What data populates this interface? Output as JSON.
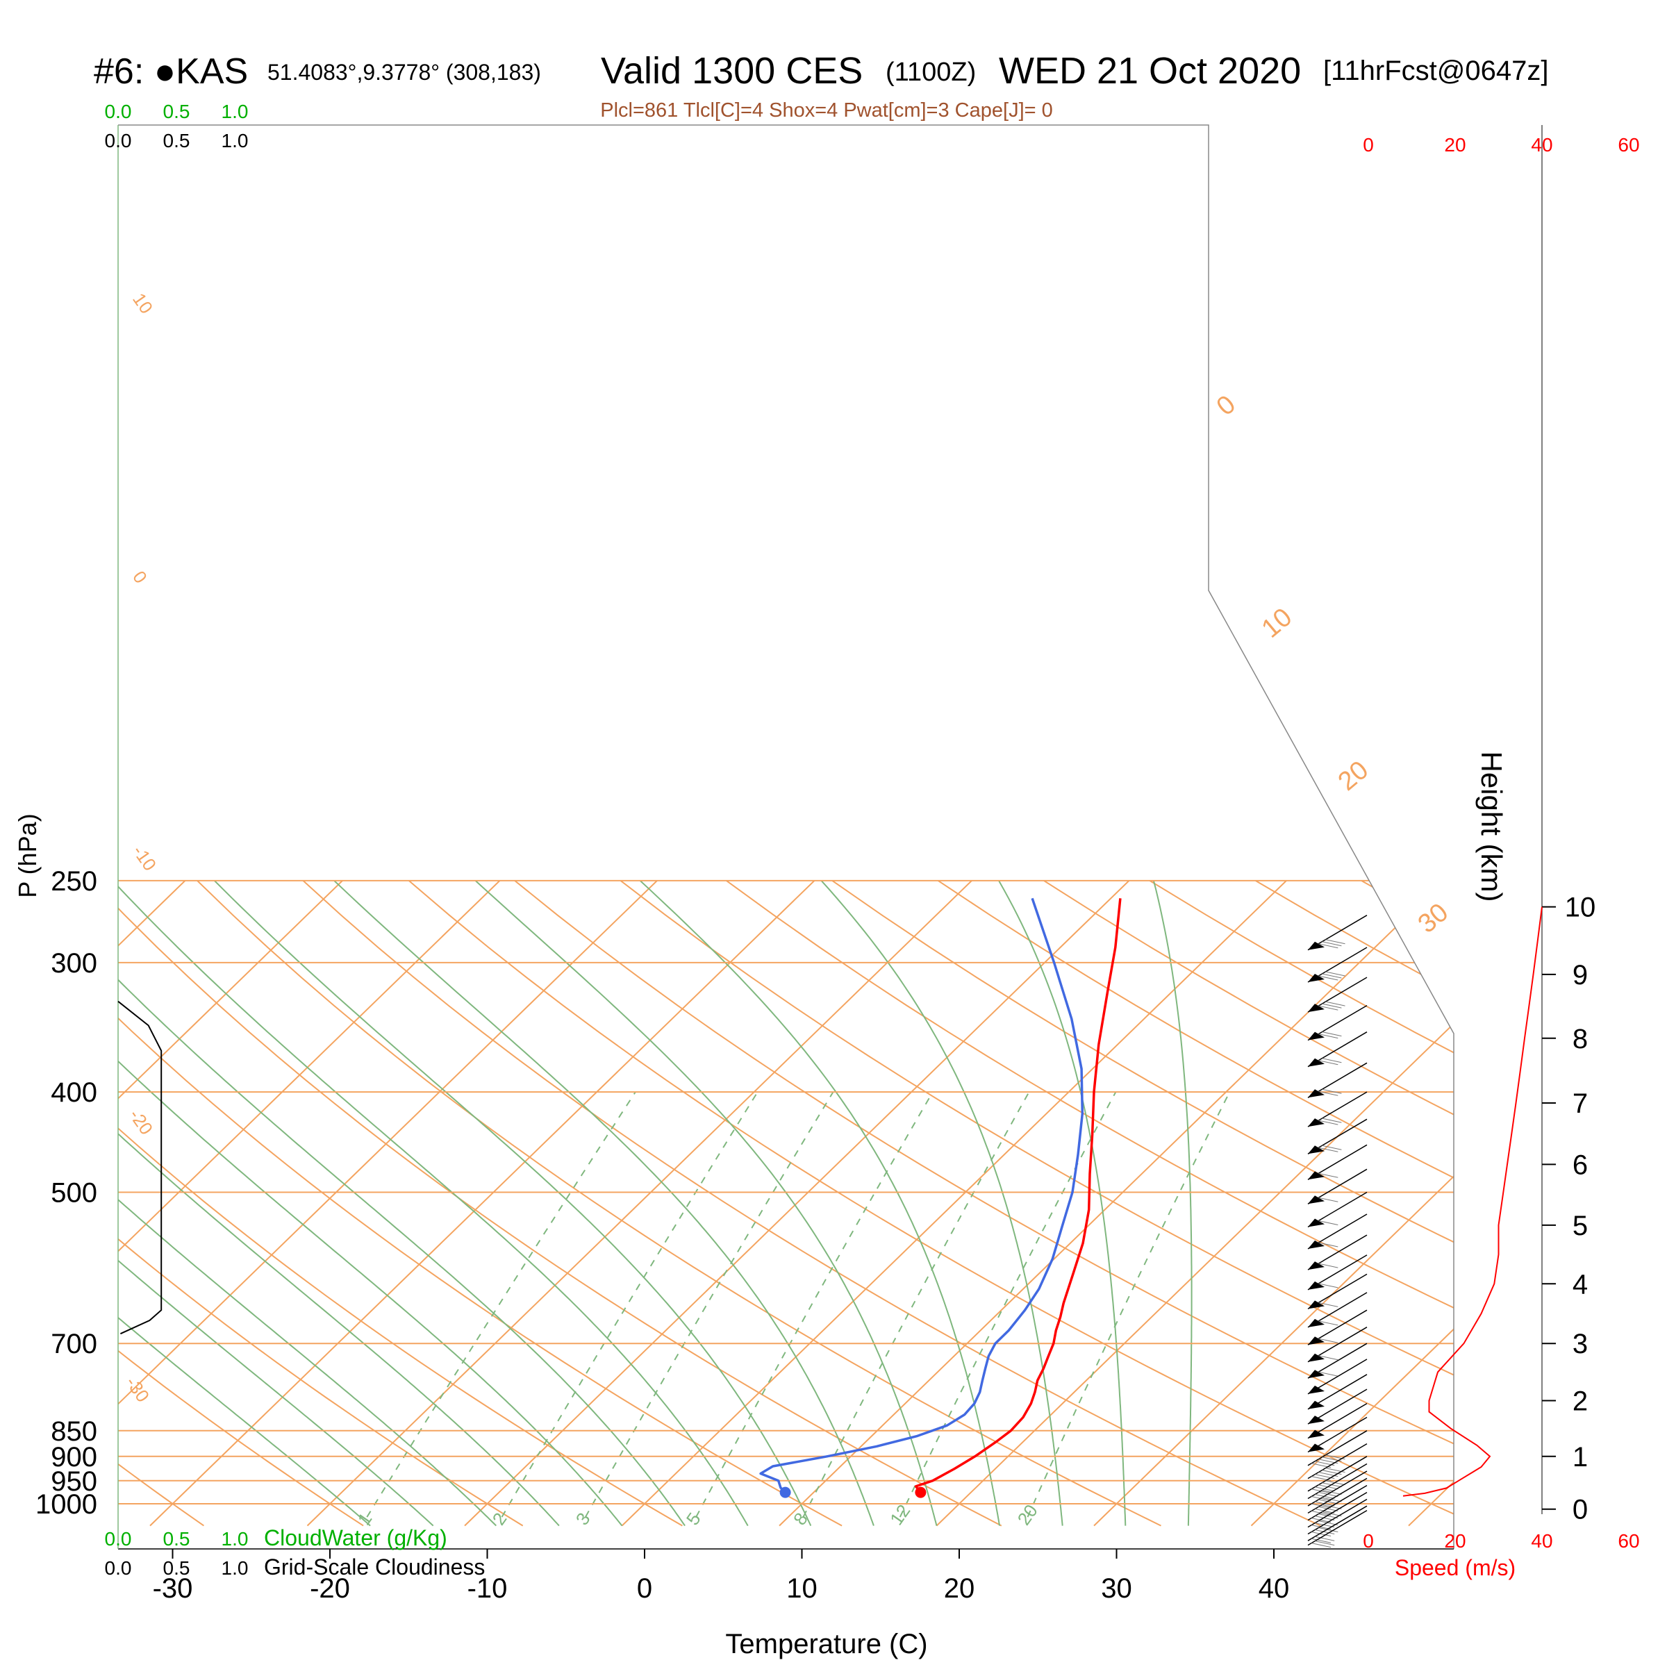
{
  "header": {
    "station": "#6: ●KAS",
    "coords": "51.4083°,9.3778° (308,183)",
    "valid": "Valid 1300 CES",
    "zulu": "(1100Z)",
    "date": "WED 21 Oct 2020",
    "forecast": "[11hrFcst@0647z]",
    "indices": "Plcl=861 Tlcl[C]=4 Shox=4 Pwat[cm]=3 Cape[J]= 0"
  },
  "colors": {
    "isotherm": "#f4a460",
    "dry_adiabat": "#7fb77e",
    "mixing_ratio": "#7fb77e",
    "temperature": "#ff0000",
    "dewpoint": "#4169e1",
    "cloud_water": "#00b000",
    "cloudiness": "#000000",
    "wind_speed": "#ff0000",
    "indices_text": "#a0522d"
  },
  "chart_data": {
    "type": "skew-t",
    "xlabel": "Temperature (C)",
    "ylabel": "P (hPa)",
    "xlim": [
      -33,
      36
    ],
    "ylim": [
      1030,
      250
    ],
    "x_ticks": [
      "-30",
      "-20",
      "-10",
      "0",
      "10",
      "20",
      "30",
      "40"
    ],
    "p_ticks": [
      "250",
      "300",
      "400",
      "500",
      "700",
      "850",
      "900",
      "950",
      "1000"
    ],
    "isotherm_labels": [
      "10",
      "0",
      "-10",
      "-20",
      "-30"
    ],
    "upper_isotherm_labels": [
      "0",
      "10",
      "20",
      "30"
    ],
    "mixing_ratio_labels": [
      "1",
      "2",
      "3",
      "5",
      "8",
      "12",
      "20"
    ],
    "temperature": {
      "p": [
        975,
        962,
        950,
        925,
        900,
        870,
        850,
        825,
        800,
        780,
        760,
        740,
        720,
        700,
        680,
        660,
        640,
        600,
        560,
        520,
        480,
        440,
        400,
        360,
        320,
        290,
        260
      ],
      "t": [
        16.8,
        16.1,
        16.8,
        17.4,
        17.9,
        18.3,
        18.5,
        18.4,
        18.0,
        17.5,
        16.9,
        16.5,
        16.0,
        15.5,
        14.8,
        14.2,
        13.5,
        12.2,
        10.8,
        9.0,
        6.7,
        4.3,
        1.6,
        -1.2,
        -4.1,
        -6.5,
        -9.4
      ]
    },
    "dewpoint": {
      "p": [
        975,
        965,
        950,
        935,
        920,
        900,
        880,
        860,
        840,
        820,
        800,
        780,
        760,
        740,
        720,
        700,
        680,
        650,
        620,
        580,
        540,
        500,
        460,
        420,
        380,
        340,
        300,
        260
      ],
      "t": [
        8.2,
        7.6,
        7.0,
        5.4,
        5.7,
        8.5,
        11.0,
        12.9,
        14.1,
        14.5,
        14.4,
        14.0,
        13.4,
        12.8,
        12.2,
        11.8,
        11.8,
        11.5,
        11.0,
        9.9,
        8.4,
        6.8,
        4.7,
        2.3,
        -0.7,
        -4.6,
        -9.4,
        -15.0
      ]
    },
    "cloud_water": {
      "axis_label": "CloudWater (g/Kg)",
      "ticks": [
        "0.0",
        "0.5",
        "1.0"
      ],
      "p": [],
      "v": []
    },
    "cloudiness": {
      "axis_label": "Grid-Scale Cloudiness",
      "ticks": [
        "0.0",
        "0.5",
        "1.0"
      ],
      "p": [
        327,
        345,
        365,
        650,
        665,
        685
      ],
      "v": [
        0.0,
        0.26,
        0.37,
        0.37,
        0.27,
        0.02
      ]
    },
    "wind_speed": {
      "axis_label": "Speed (m/s)",
      "ticks": [
        "0",
        "20",
        "40",
        "60"
      ],
      "xlim": [
        0,
        60
      ],
      "height_km": [
        0.25,
        0.3,
        0.4,
        0.5,
        0.6,
        0.7,
        0.8,
        0.9,
        1.0,
        1.2,
        1.5,
        1.8,
        2.0,
        2.5,
        3.0,
        3.5,
        4.0,
        4.5,
        5.0,
        5.5,
        6.0,
        6.5,
        7.0,
        7.5,
        8.0,
        8.5,
        9.0,
        9.5,
        10.0,
        10.2
      ],
      "speed": [
        8,
        13,
        18,
        20,
        22,
        24,
        26,
        27,
        28,
        25,
        19,
        14,
        14,
        16,
        22,
        26,
        29,
        30,
        30,
        31,
        32,
        33,
        34,
        35,
        36,
        37,
        38,
        39,
        40,
        40
      ]
    },
    "height_axis": {
      "label": "Height (km)",
      "ticks": [
        "0",
        "1",
        "2",
        "3",
        "4",
        "5",
        "6",
        "7",
        "8",
        "9",
        "10"
      ],
      "tick_pressures": [
        1012,
        900,
        795,
        700,
        613,
        538,
        470,
        410,
        355,
        308,
        265
      ]
    },
    "wind_barbs": {
      "p": [
        270,
        290,
        310,
        330,
        350,
        375,
        400,
        425,
        450,
        475,
        500,
        525,
        550,
        575,
        600,
        625,
        650,
        675,
        700,
        725,
        750,
        775,
        800,
        825,
        850,
        875,
        900,
        915,
        930,
        945,
        960,
        975,
        990,
        1005,
        1015
      ],
      "speed_kt": [
        80,
        75,
        75,
        70,
        70,
        65,
        65,
        65,
        60,
        60,
        60,
        55,
        55,
        55,
        55,
        55,
        55,
        55,
        55,
        50,
        50,
        50,
        50,
        50,
        45,
        45,
        45,
        40,
        40,
        35,
        35,
        30,
        25,
        20,
        15
      ]
    }
  }
}
